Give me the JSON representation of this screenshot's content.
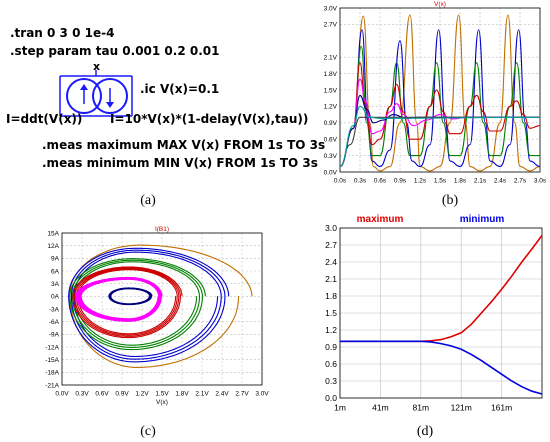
{
  "schematic": {
    "line1": ".tran 0 3 0 1e-4",
    "line2": ".step param tau 0.001 0.2 0.01",
    "node_label": "x",
    "ic": ".ic V(x)=0.1",
    "src_left": "I=ddt(V(x))",
    "src_right": "I=10*V(x)*(1-delay(V(x),tau))",
    "meas1": ".meas maximum MAX V(x) FROM 1s TO 3s",
    "meas2": ".meas minimum MIN V(x) FROM 1s TO 3s"
  },
  "captions": {
    "a": "(a)",
    "b": "(b)",
    "c": "(c)",
    "d": "(d)"
  },
  "colors": {
    "series": [
      "#c07000",
      "#0000cc",
      "#008000",
      "#cc0000",
      "#ff00ff",
      "#000080",
      "#404040",
      "#00a0a0"
    ],
    "grid": "#bfbfbf",
    "title_red": "#cc0000",
    "max_red": "#e00000",
    "min_blue": "#0000e0"
  },
  "chart_data": [
    {
      "id": "b",
      "type": "line",
      "title": "V(x)",
      "xlabel": "",
      "ylabel": "",
      "xlim": [
        0.0,
        3.0
      ],
      "ylim": [
        0.0,
        3.0
      ],
      "xticks": [
        "0.0s",
        "0.3s",
        "0.6s",
        "0.9s",
        "1.2s",
        "1.5s",
        "1.8s",
        "2.1s",
        "2.4s",
        "2.7s",
        "3.0s"
      ],
      "yticks": [
        "0.0V",
        "0.3V",
        "0.6V",
        "0.9V",
        "1.2V",
        "1.5V",
        "1.8V",
        "2.1V",
        "2.7V",
        "3.0V"
      ],
      "ytick_values": [
        0.0,
        0.3,
        0.6,
        0.9,
        1.2,
        1.5,
        1.8,
        2.1,
        2.7,
        3.0
      ],
      "grid": true,
      "series": [
        {
          "values": [
            [
              0.0,
              0.1
            ],
            [
              0.2,
              0.8
            ],
            [
              0.35,
              2.85
            ],
            [
              0.45,
              0.9
            ],
            [
              0.5,
              0.1
            ],
            [
              0.6,
              0.02
            ],
            [
              0.75,
              0.1
            ],
            [
              0.9,
              0.9
            ],
            [
              1.05,
              2.87
            ],
            [
              1.15,
              0.9
            ],
            [
              1.2,
              0.1
            ],
            [
              1.35,
              0.02
            ],
            [
              1.5,
              0.1
            ],
            [
              1.65,
              0.9
            ],
            [
              1.78,
              2.87
            ],
            [
              1.88,
              0.9
            ],
            [
              1.95,
              0.1
            ],
            [
              2.1,
              0.02
            ],
            [
              2.25,
              0.1
            ],
            [
              2.4,
              0.9
            ],
            [
              2.52,
              2.87
            ],
            [
              2.62,
              0.9
            ],
            [
              2.7,
              0.1
            ],
            [
              2.85,
              0.02
            ],
            [
              3.0,
              0.1
            ]
          ]
        },
        {
          "values": [
            [
              0.0,
              0.1
            ],
            [
              0.2,
              0.8
            ],
            [
              0.33,
              2.6
            ],
            [
              0.42,
              0.9
            ],
            [
              0.48,
              0.2
            ],
            [
              0.6,
              0.1
            ],
            [
              0.75,
              0.4
            ],
            [
              0.9,
              2.4
            ],
            [
              1.0,
              0.9
            ],
            [
              1.08,
              0.2
            ],
            [
              1.2,
              0.1
            ],
            [
              1.35,
              0.5
            ],
            [
              1.48,
              2.6
            ],
            [
              1.58,
              0.9
            ],
            [
              1.65,
              0.2
            ],
            [
              1.8,
              0.1
            ],
            [
              1.95,
              0.5
            ],
            [
              2.08,
              2.6
            ],
            [
              2.18,
              0.9
            ],
            [
              2.25,
              0.2
            ],
            [
              2.4,
              0.1
            ],
            [
              2.55,
              0.5
            ],
            [
              2.68,
              2.6
            ],
            [
              2.78,
              0.9
            ],
            [
              2.85,
              0.2
            ],
            [
              3.0,
              0.1
            ]
          ]
        },
        {
          "values": [
            [
              0.0,
              0.1
            ],
            [
              0.2,
              0.8
            ],
            [
              0.32,
              2.3
            ],
            [
              0.4,
              0.9
            ],
            [
              0.48,
              0.3
            ],
            [
              0.6,
              0.3
            ],
            [
              0.75,
              1.2
            ],
            [
              0.85,
              2.0
            ],
            [
              0.95,
              0.9
            ],
            [
              1.05,
              0.3
            ],
            [
              1.2,
              0.3
            ],
            [
              1.35,
              1.2
            ],
            [
              1.45,
              2.0
            ],
            [
              1.55,
              0.9
            ],
            [
              1.65,
              0.3
            ],
            [
              1.8,
              0.3
            ],
            [
              1.95,
              1.2
            ],
            [
              2.05,
              2.0
            ],
            [
              2.15,
              0.9
            ],
            [
              2.25,
              0.3
            ],
            [
              2.4,
              0.3
            ],
            [
              2.55,
              1.2
            ],
            [
              2.65,
              2.0
            ],
            [
              2.75,
              0.9
            ],
            [
              2.85,
              0.3
            ],
            [
              3.0,
              0.3
            ]
          ]
        },
        {
          "values": [
            [
              0.0,
              0.1
            ],
            [
              0.2,
              0.8
            ],
            [
              0.3,
              2.0
            ],
            [
              0.38,
              1.2
            ],
            [
              0.48,
              0.5
            ],
            [
              0.6,
              0.6
            ],
            [
              0.75,
              1.2
            ],
            [
              0.85,
              1.6
            ],
            [
              0.95,
              1.1
            ],
            [
              1.05,
              0.6
            ],
            [
              1.2,
              0.6
            ],
            [
              1.35,
              1.2
            ],
            [
              1.45,
              1.5
            ],
            [
              1.55,
              1.1
            ],
            [
              1.65,
              0.7
            ],
            [
              1.8,
              0.7
            ],
            [
              1.95,
              1.2
            ],
            [
              2.05,
              1.4
            ],
            [
              2.15,
              1.1
            ],
            [
              2.25,
              0.75
            ],
            [
              2.4,
              0.75
            ],
            [
              2.55,
              1.2
            ],
            [
              2.65,
              1.3
            ],
            [
              2.75,
              1.05
            ],
            [
              2.85,
              0.8
            ],
            [
              3.0,
              0.85
            ]
          ]
        },
        {
          "values": [
            [
              0.0,
              0.1
            ],
            [
              0.2,
              0.8
            ],
            [
              0.3,
              1.7
            ],
            [
              0.38,
              1.3
            ],
            [
              0.48,
              0.7
            ],
            [
              0.6,
              0.75
            ],
            [
              0.75,
              1.1
            ],
            [
              0.85,
              1.25
            ],
            [
              0.95,
              1.05
            ],
            [
              1.1,
              0.85
            ],
            [
              1.3,
              0.95
            ],
            [
              1.5,
              1.05
            ],
            [
              1.7,
              0.97
            ],
            [
              1.9,
              1.0
            ],
            [
              2.1,
              1.0
            ],
            [
              2.4,
              1.0
            ],
            [
              3.0,
              1.0
            ]
          ]
        },
        {
          "values": [
            [
              0.0,
              0.1
            ],
            [
              0.2,
              0.8
            ],
            [
              0.3,
              1.4
            ],
            [
              0.4,
              1.15
            ],
            [
              0.5,
              0.9
            ],
            [
              0.65,
              0.95
            ],
            [
              0.8,
              1.05
            ],
            [
              1.0,
              0.98
            ],
            [
              1.2,
              1.0
            ],
            [
              3.0,
              1.0
            ]
          ]
        },
        {
          "values": [
            [
              0.0,
              0.1
            ],
            [
              0.15,
              0.5
            ],
            [
              0.3,
              1.0
            ],
            [
              0.45,
              1.0
            ],
            [
              3.0,
              1.0
            ]
          ]
        },
        {
          "values": [
            [
              0.0,
              0.1
            ],
            [
              0.2,
              0.85
            ],
            [
              0.3,
              1.2
            ],
            [
              0.45,
              1.0
            ],
            [
              0.6,
              0.98
            ],
            [
              3.0,
              1.0
            ]
          ]
        }
      ]
    },
    {
      "id": "c",
      "type": "line",
      "title": "I(B1)",
      "xlabel": "V(x)",
      "ylabel": "",
      "xlim": [
        0.0,
        3.0
      ],
      "ylim": [
        -21,
        15
      ],
      "xticks": [
        "0.0V",
        "0.3V",
        "0.6V",
        "0.9V",
        "1.2V",
        "1.5V",
        "1.8V",
        "2.1V",
        "2.4V",
        "2.7V",
        "3.0V"
      ],
      "yticks": [
        "15A",
        "12A",
        "9A",
        "6A",
        "3A",
        "0A",
        "-3A",
        "-6A",
        "-9A",
        "-12A",
        "-15A",
        "-18A",
        "-21A"
      ],
      "ytick_values": [
        15,
        12,
        9,
        6,
        3,
        0,
        -3,
        -6,
        -9,
        -12,
        -15,
        -18,
        -21
      ],
      "grid": true,
      "series": [
        {
          "loop": {
            "cx": 1.15,
            "cy": 0,
            "x_min": 0.05,
            "x_max": 2.85,
            "y_min": -18.5,
            "y_max": 12.5,
            "turns": 1
          }
        },
        {
          "loop": {
            "cx": 1.1,
            "cy": 0,
            "x_min": 0.08,
            "x_max": 2.5,
            "y_min": -16,
            "y_max": 11.5,
            "turns": 3
          }
        },
        {
          "loop": {
            "cx": 1.05,
            "cy": 0,
            "x_min": 0.1,
            "x_max": 2.15,
            "y_min": -13,
            "y_max": 9,
            "turns": 3
          }
        },
        {
          "loop": {
            "cx": 1.0,
            "cy": 0,
            "x_min": 0.15,
            "x_max": 1.8,
            "y_min": -10,
            "y_max": 7,
            "turns": 4
          }
        },
        {
          "loop": {
            "cx": 1.0,
            "cy": 0,
            "x_min": 0.2,
            "x_max": 1.5,
            "y_min": -6,
            "y_max": 4.5,
            "turns": 6
          }
        },
        {
          "loop": {
            "cx": 1.0,
            "cy": 0,
            "x_min": 0.7,
            "x_max": 1.35,
            "y_min": -2,
            "y_max": 2,
            "turns": 5
          }
        }
      ]
    },
    {
      "id": "d",
      "type": "line",
      "title": "",
      "xlabel": "",
      "ylabel": "",
      "xlim": [
        1,
        201
      ],
      "ylim": [
        0.0,
        3.0
      ],
      "xticks": [
        "1m",
        "41m",
        "81m",
        "121m",
        "161m"
      ],
      "xtick_values": [
        1,
        41,
        81,
        121,
        161
      ],
      "yticks": [
        "3.0",
        "2.7",
        "2.4",
        "2.1",
        "1.8",
        "1.5",
        "1.2",
        "0.9",
        "0.6",
        "0.3",
        "0.0"
      ],
      "ytick_values": [
        3.0,
        2.7,
        2.4,
        2.1,
        1.8,
        1.5,
        1.2,
        0.9,
        0.6,
        0.3,
        0.0
      ],
      "grid": true,
      "legend": "top",
      "series": [
        {
          "name": "maximum",
          "x": [
            1,
            11,
            21,
            31,
            41,
            51,
            61,
            71,
            81,
            91,
            101,
            111,
            121,
            131,
            141,
            151,
            161,
            171,
            181,
            191,
            201
          ],
          "values": [
            1.0,
            1.0,
            1.0,
            1.0,
            1.0,
            1.0,
            1.0,
            1.0,
            1.0,
            1.01,
            1.03,
            1.08,
            1.15,
            1.3,
            1.5,
            1.7,
            1.92,
            2.15,
            2.4,
            2.63,
            2.87
          ]
        },
        {
          "name": "minimum",
          "x": [
            1,
            11,
            21,
            31,
            41,
            51,
            61,
            71,
            81,
            91,
            101,
            111,
            121,
            131,
            141,
            151,
            161,
            171,
            181,
            191,
            201
          ],
          "values": [
            1.0,
            1.0,
            1.0,
            1.0,
            1.0,
            1.0,
            1.0,
            1.0,
            1.0,
            0.99,
            0.96,
            0.92,
            0.86,
            0.77,
            0.66,
            0.54,
            0.42,
            0.3,
            0.2,
            0.12,
            0.07
          ]
        }
      ]
    }
  ]
}
